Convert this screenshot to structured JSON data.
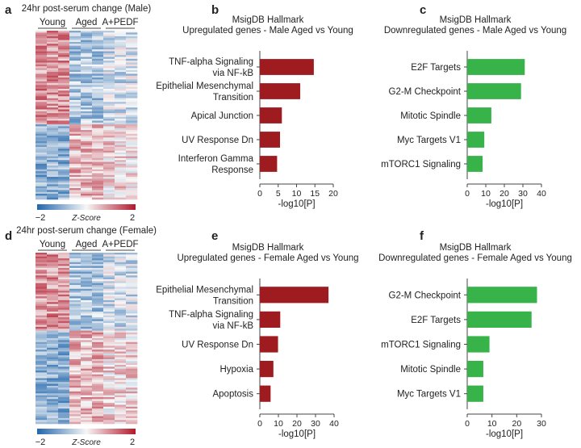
{
  "panel_labels": [
    "a",
    "b",
    "c",
    "d",
    "e",
    "f"
  ],
  "chart_data": [
    {
      "type": "heatmap",
      "panel": "a",
      "title": "24hr post-serum change (Male)",
      "groups": [
        "Young",
        "Aged",
        "A+PEDF"
      ],
      "colorbar": {
        "label": "Z-Score",
        "min": -2,
        "max": 2,
        "min_label": "−2",
        "max_label": "2",
        "low_color": "#2166ac",
        "mid_color": "#f7f7f7",
        "high_color": "#b2182b"
      }
    },
    {
      "type": "bar",
      "orientation": "horizontal",
      "panel": "b",
      "title": [
        "MsigDB Hallmark",
        "Upregulated genes - Male Aged vs Young"
      ],
      "categories": [
        [
          "TNF-alpha Signaling",
          "via NF-kB"
        ],
        [
          "Epithelial Mesenchymal",
          "Transition"
        ],
        [
          "Apical Junction"
        ],
        [
          "UV Response Dn"
        ],
        [
          "Interferon Gamma",
          "Response"
        ]
      ],
      "values": [
        14.7,
        11,
        6,
        5.5,
        4.7
      ],
      "xlabel": "-log10[P]",
      "xlim": [
        0,
        20
      ],
      "xticks": [
        0,
        5,
        10,
        15,
        20
      ],
      "color": "#9e1b20"
    },
    {
      "type": "bar",
      "orientation": "horizontal",
      "panel": "c",
      "title": [
        "MsigDB Hallmark",
        "Downregulated genes - Male Aged vs Young"
      ],
      "categories": [
        [
          "E2F Targets"
        ],
        [
          "G2-M Checkpoint"
        ],
        [
          "Mitotic Spindle"
        ],
        [
          "Myc Targets V1"
        ],
        [
          "mTORC1 Signaling"
        ]
      ],
      "values": [
        31,
        29,
        13,
        9.2,
        8.3
      ],
      "xlabel": "-log10[P]",
      "xlim": [
        0,
        40
      ],
      "xticks": [
        0,
        10,
        20,
        30,
        40
      ],
      "color": "#38b34a"
    },
    {
      "type": "heatmap",
      "panel": "d",
      "title": "24hr post-serum change (Female)",
      "groups": [
        "Young",
        "Aged",
        "A+PEDF"
      ],
      "colorbar": {
        "label": "Z-Score",
        "min": -2,
        "max": 2,
        "min_label": "−2",
        "max_label": "2",
        "low_color": "#2166ac",
        "mid_color": "#f7f7f7",
        "high_color": "#b2182b"
      }
    },
    {
      "type": "bar",
      "orientation": "horizontal",
      "panel": "e",
      "title": [
        "MsigDB Hallmark",
        "Upregulated genes - Female Aged vs Young"
      ],
      "categories": [
        [
          "Epithelial Mesenchymal",
          "Transition"
        ],
        [
          "TNF-alpha Signaling",
          "via NF-kB"
        ],
        [
          "UV Response Dn"
        ],
        [
          "Hypoxia"
        ],
        [
          "Apoptosis"
        ]
      ],
      "values": [
        37,
        11,
        9.8,
        7.3,
        5.8
      ],
      "xlabel": "-log10[P]",
      "xlim": [
        0,
        40
      ],
      "xticks": [
        0,
        10,
        20,
        30,
        40
      ],
      "color": "#9e1b20"
    },
    {
      "type": "bar",
      "orientation": "horizontal",
      "panel": "f",
      "title": [
        "MsigDB Hallmark",
        "Downregulated genes - Female Aged vs Young"
      ],
      "categories": [
        [
          "G2-M Checkpoint"
        ],
        [
          "E2F Targets"
        ],
        [
          "mTORC1 Signaling"
        ],
        [
          "Mitotic Spindle"
        ],
        [
          "Myc Targets V1"
        ]
      ],
      "values": [
        28.2,
        26,
        9,
        6.5,
        6.5
      ],
      "xlabel": "-log10[P]",
      "xlim": [
        0,
        30
      ],
      "xticks": [
        0,
        10,
        20,
        30
      ],
      "color": "#38b34a"
    }
  ]
}
